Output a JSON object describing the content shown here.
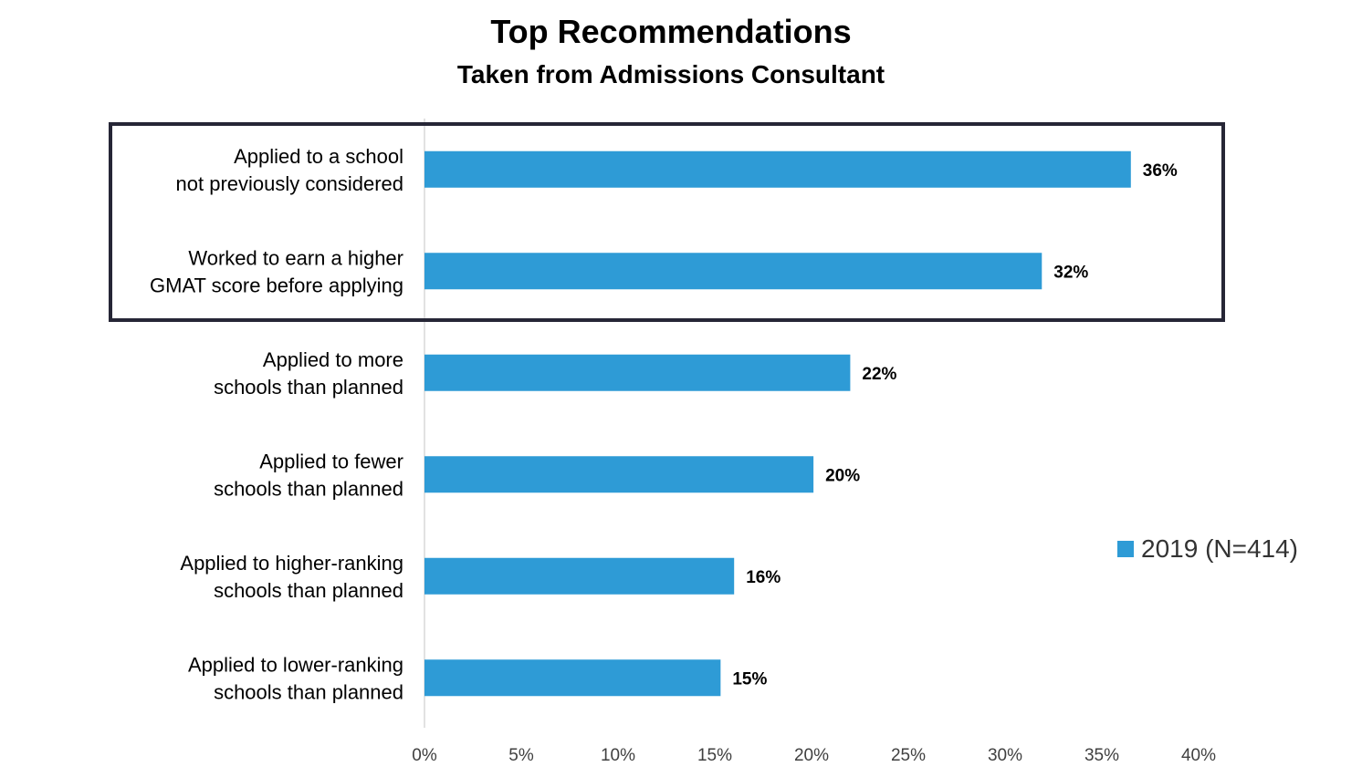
{
  "chart_data": {
    "type": "bar",
    "orientation": "horizontal",
    "title": "Top Recommendations",
    "subtitle": "Taken from Admissions Consultant",
    "categories": [
      [
        "Applied to a school",
        "not previously considered"
      ],
      [
        "Worked to earn a higher",
        "GMAT score before applying"
      ],
      [
        "Applied to more",
        "schools than planned"
      ],
      [
        "Applied to fewer",
        "schools than planned"
      ],
      [
        "Applied to higher-ranking",
        "schools than planned"
      ],
      [
        "Applied to lower-ranking",
        "schools than planned"
      ]
    ],
    "series": [
      {
        "name": "2019 (N=414)",
        "values": [
          36.5,
          31.9,
          22,
          20.1,
          16,
          15.3
        ],
        "data_labels": [
          "36%",
          "32%",
          "22%",
          "20%",
          "16%",
          "15%"
        ],
        "color": "#2E9BD6"
      }
    ],
    "xlim": [
      0,
      40
    ],
    "x_ticks": [
      0,
      5,
      10,
      15,
      20,
      25,
      30,
      35,
      40
    ],
    "x_tick_labels": [
      "0%",
      "5%",
      "10%",
      "15%",
      "20%",
      "25%",
      "30%",
      "35%",
      "40%"
    ],
    "highlight_box_categories": [
      0,
      1
    ],
    "legend_position": "right",
    "grid": false
  }
}
